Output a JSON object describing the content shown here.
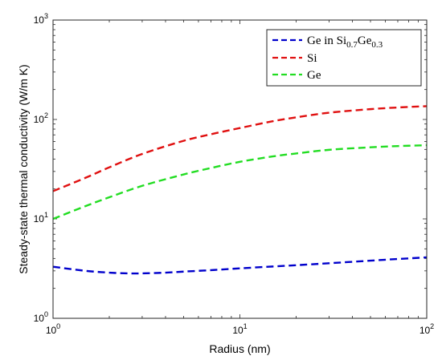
{
  "chart_data": {
    "type": "line",
    "title": "",
    "xlabel": "Radius (nm)",
    "ylabel": "Steady-state thermal conductivity (W/m K)",
    "xscale": "log",
    "yscale": "log",
    "xlim": [
      1,
      100
    ],
    "ylim": [
      1,
      1000
    ],
    "grid": false,
    "legend_position": "top-right",
    "x_ticks": [
      {
        "base": "10",
        "exp": "0"
      },
      {
        "base": "10",
        "exp": "1"
      },
      {
        "base": "10",
        "exp": "2"
      }
    ],
    "y_ticks": [
      {
        "base": "10",
        "exp": "0"
      },
      {
        "base": "10",
        "exp": "1"
      },
      {
        "base": "10",
        "exp": "2"
      },
      {
        "base": "10",
        "exp": "3"
      }
    ],
    "legend_labels": {
      "gesige": {
        "main": "Ge in Si",
        "sub1": "0.7",
        "mid": "Ge",
        "sub2": "0.3"
      },
      "si": "Si",
      "ge": "Ge"
    },
    "series": [
      {
        "key": "gesige",
        "color": "#0000cc",
        "line_style": "dashed",
        "x": [
          1,
          1.5,
          2,
          2.5,
          3,
          4,
          5,
          7,
          10,
          15,
          20,
          30,
          50,
          70,
          100
        ],
        "y": [
          3.3,
          3.0,
          2.88,
          2.83,
          2.83,
          2.88,
          2.95,
          3.05,
          3.18,
          3.32,
          3.42,
          3.58,
          3.8,
          3.95,
          4.1
        ]
      },
      {
        "key": "si",
        "color": "#e01010",
        "line_style": "dashed",
        "x": [
          1,
          1.5,
          2,
          3,
          5,
          7,
          10,
          15,
          20,
          30,
          50,
          70,
          100
        ],
        "y": [
          19,
          26,
          33,
          45,
          61,
          71,
          82,
          96,
          105,
          117,
          127,
          132,
          136
        ]
      },
      {
        "key": "ge",
        "color": "#22dd22",
        "line_style": "dashed",
        "x": [
          1,
          1.5,
          2,
          3,
          5,
          7,
          10,
          15,
          20,
          30,
          50,
          70,
          100
        ],
        "y": [
          10,
          13.5,
          16.5,
          21.5,
          28,
          32.5,
          37.5,
          42.5,
          45.5,
          49.5,
          52.5,
          54,
          55
        ]
      }
    ]
  }
}
